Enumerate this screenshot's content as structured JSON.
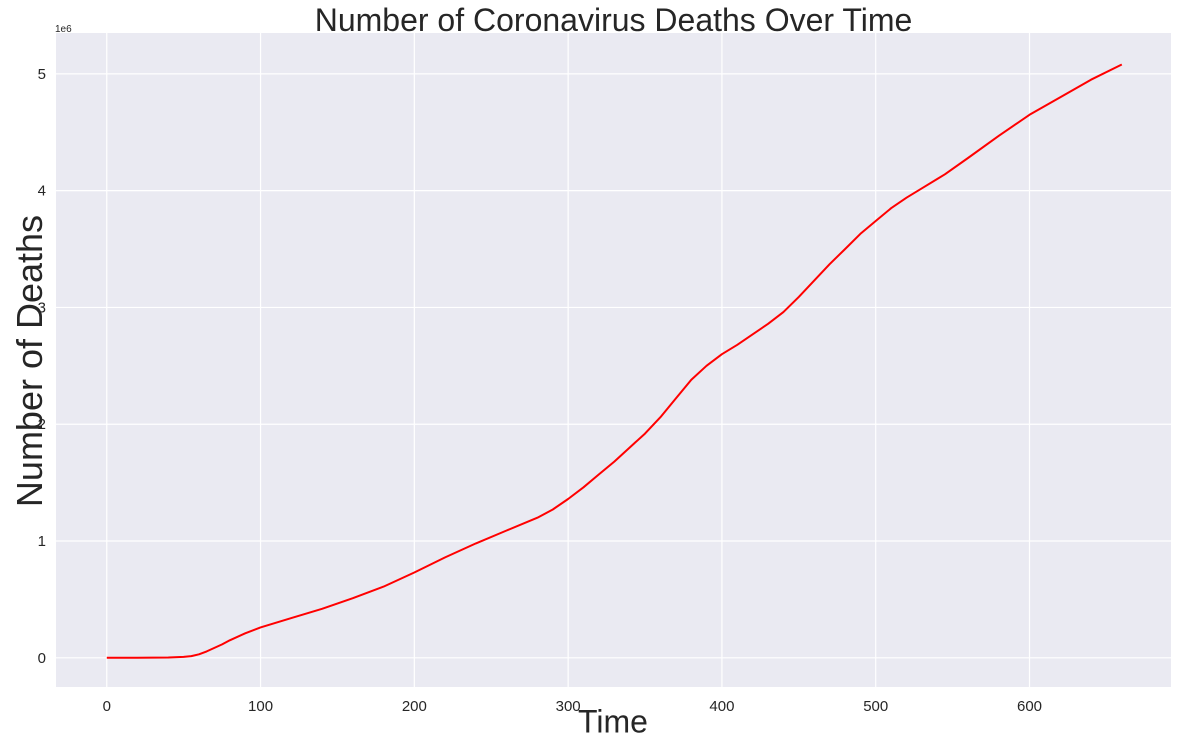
{
  "chart_data": {
    "type": "line",
    "title": "Number of Coronavirus Deaths Over Time",
    "xlabel": "Time",
    "ylabel": "Number of Deaths",
    "y_offset_text": "1e6",
    "xlim": [
      -33,
      692
    ],
    "ylim": [
      -250000,
      5350000
    ],
    "xticks": [
      0,
      100,
      200,
      300,
      400,
      500,
      600
    ],
    "yticks": [
      0,
      1000000,
      2000000,
      3000000,
      4000000,
      5000000
    ],
    "ytick_labels": [
      "0",
      "1",
      "2",
      "3",
      "4",
      "5"
    ],
    "grid": true,
    "colors": {
      "background": "#eaeaf2",
      "grid": "#ffffff",
      "line": "#ff0000",
      "text": "#262626"
    },
    "series": [
      {
        "x": [
          0,
          20,
          40,
          50,
          55,
          60,
          65,
          70,
          75,
          80,
          90,
          100,
          120,
          140,
          160,
          180,
          200,
          220,
          240,
          260,
          280,
          290,
          300,
          310,
          320,
          330,
          340,
          350,
          360,
          370,
          380,
          390,
          400,
          410,
          420,
          430,
          440,
          450,
          460,
          470,
          480,
          490,
          500,
          510,
          520,
          530,
          540,
          545,
          560,
          580,
          600,
          620,
          640,
          660
        ],
        "y": [
          0,
          1000,
          3000,
          8000,
          15000,
          30000,
          55000,
          85000,
          115000,
          150000,
          210000,
          260000,
          340000,
          420000,
          510000,
          610000,
          730000,
          860000,
          980000,
          1090000,
          1200000,
          1270000,
          1360000,
          1460000,
          1570000,
          1680000,
          1800000,
          1920000,
          2060000,
          2220000,
          2380000,
          2500000,
          2600000,
          2680000,
          2770000,
          2860000,
          2960000,
          3090000,
          3230000,
          3370000,
          3500000,
          3630000,
          3740000,
          3850000,
          3940000,
          4020000,
          4100000,
          4140000,
          4280000,
          4470000,
          4650000,
          4800000,
          4950000,
          5080000
        ]
      }
    ]
  }
}
